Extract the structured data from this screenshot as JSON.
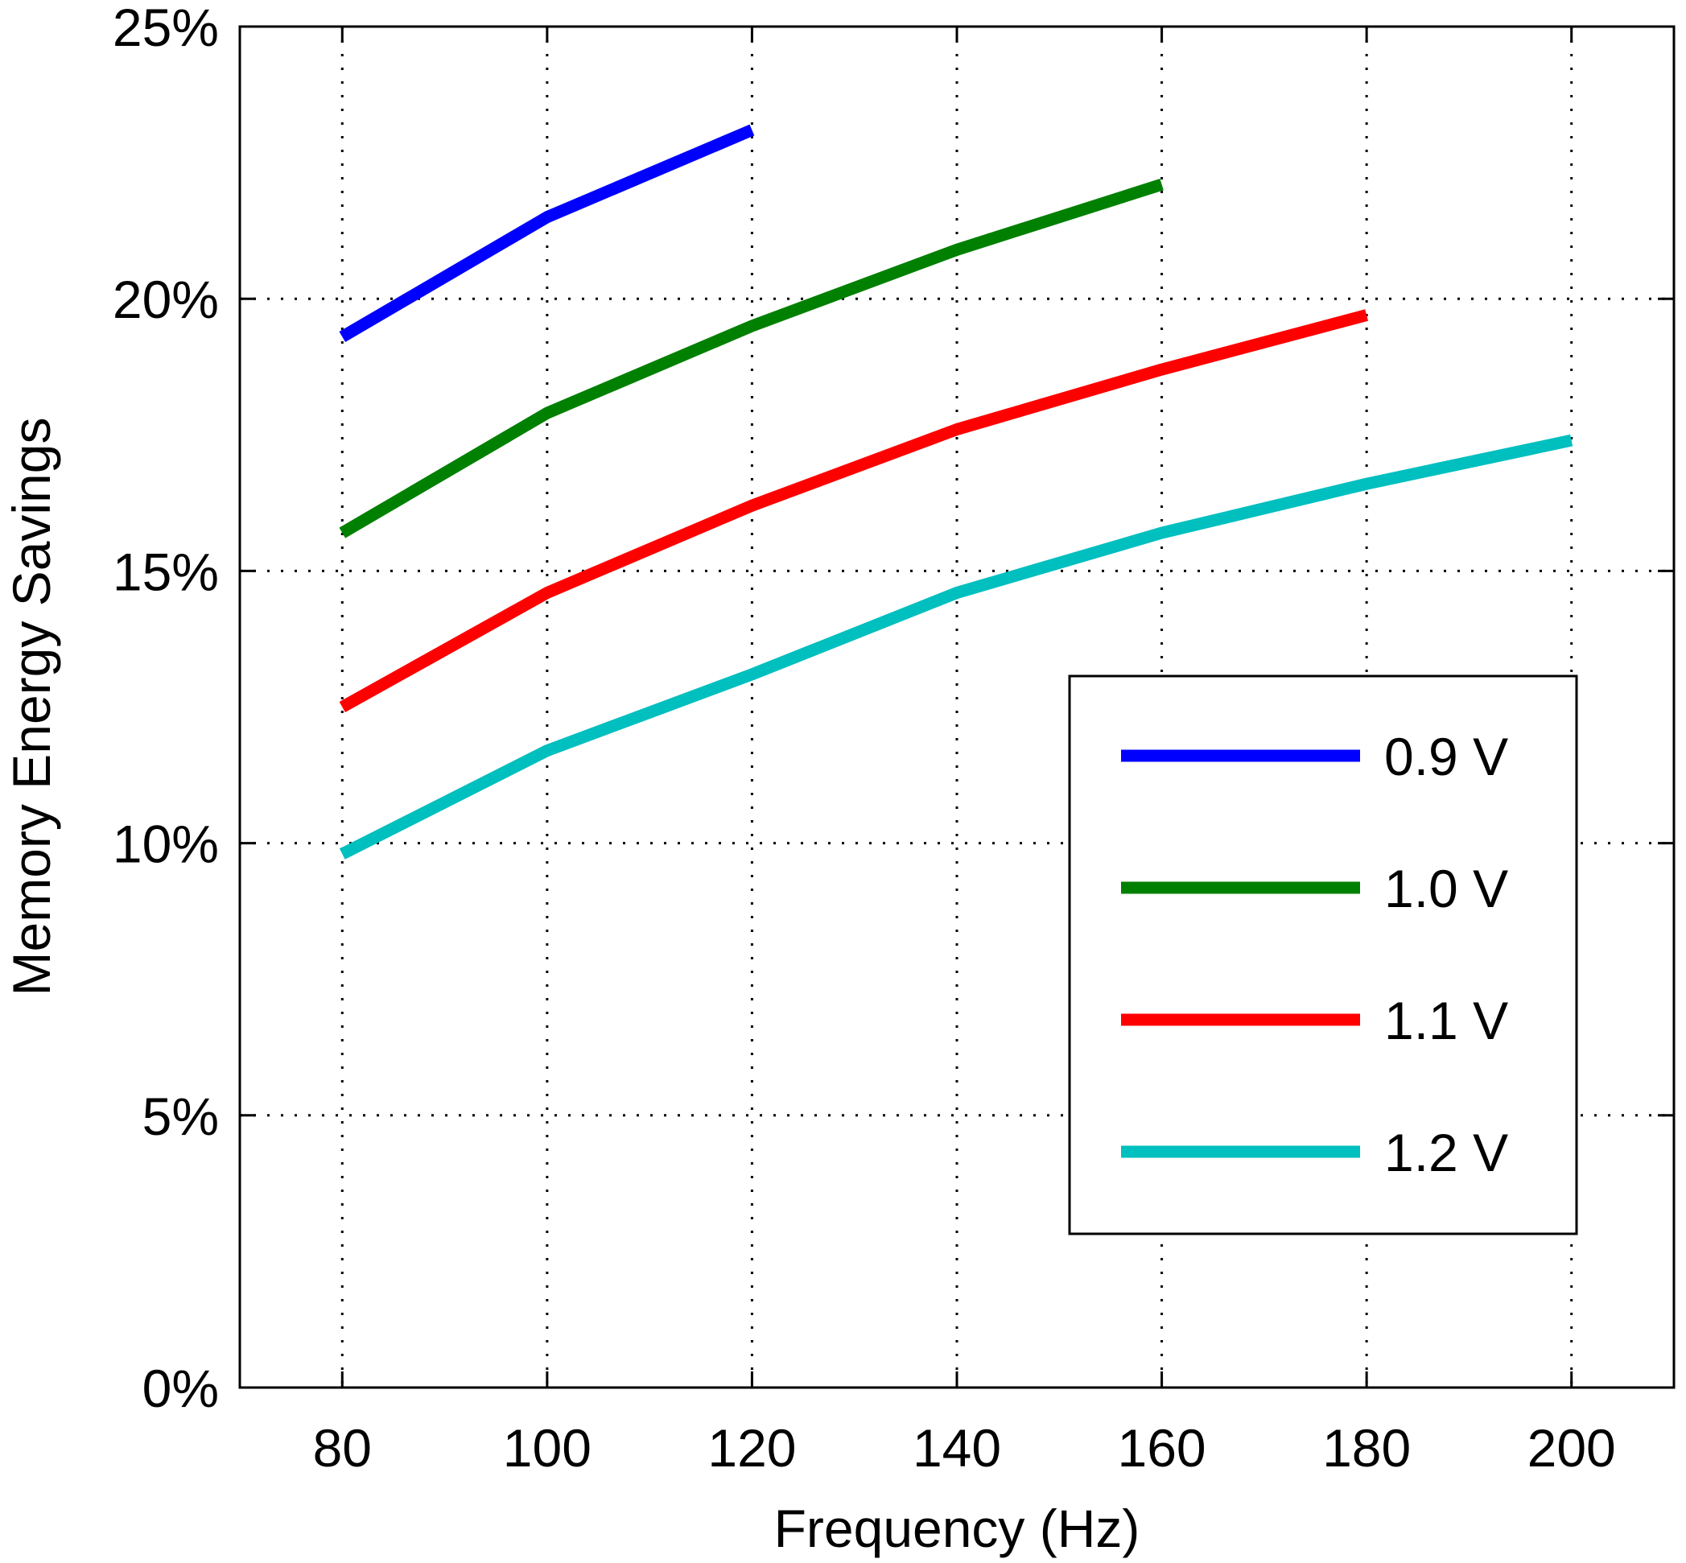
{
  "chart_data": {
    "type": "line",
    "title": "",
    "xlabel": "Frequency (Hz)",
    "ylabel": "Memory Energy Savings",
    "xlim": [
      70,
      210
    ],
    "ylim": [
      0,
      25
    ],
    "grid": true,
    "legend_position": "bottom-right",
    "x_ticks": [
      {
        "value": 80,
        "label": "80"
      },
      {
        "value": 100,
        "label": "100"
      },
      {
        "value": 120,
        "label": "120"
      },
      {
        "value": 140,
        "label": "140"
      },
      {
        "value": 160,
        "label": "160"
      },
      {
        "value": 180,
        "label": "180"
      },
      {
        "value": 200,
        "label": "200"
      }
    ],
    "y_ticks": [
      {
        "value": 0,
        "label": "0%"
      },
      {
        "value": 5,
        "label": "5%"
      },
      {
        "value": 10,
        "label": "10%"
      },
      {
        "value": 15,
        "label": "15%"
      },
      {
        "value": 20,
        "label": "20%"
      },
      {
        "value": 25,
        "label": "25%"
      }
    ],
    "series": [
      {
        "name": "0.9 V",
        "color": "#0000ff",
        "x": [
          80,
          100,
          120
        ],
        "values": [
          19.3,
          21.5,
          23.1
        ]
      },
      {
        "name": "1.0 V",
        "color": "#008000",
        "x": [
          80,
          100,
          120,
          140,
          160
        ],
        "values": [
          15.7,
          17.9,
          19.5,
          20.9,
          22.1
        ]
      },
      {
        "name": "1.1 V",
        "color": "#ff0000",
        "x": [
          80,
          100,
          120,
          140,
          160,
          180
        ],
        "values": [
          12.5,
          14.6,
          16.2,
          17.6,
          18.7,
          19.7
        ]
      },
      {
        "name": "1.2 V",
        "color": "#00bfbf",
        "x": [
          80,
          100,
          120,
          140,
          160,
          180,
          200
        ],
        "values": [
          9.8,
          11.7,
          13.1,
          14.6,
          15.7,
          16.6,
          17.4
        ]
      }
    ]
  }
}
